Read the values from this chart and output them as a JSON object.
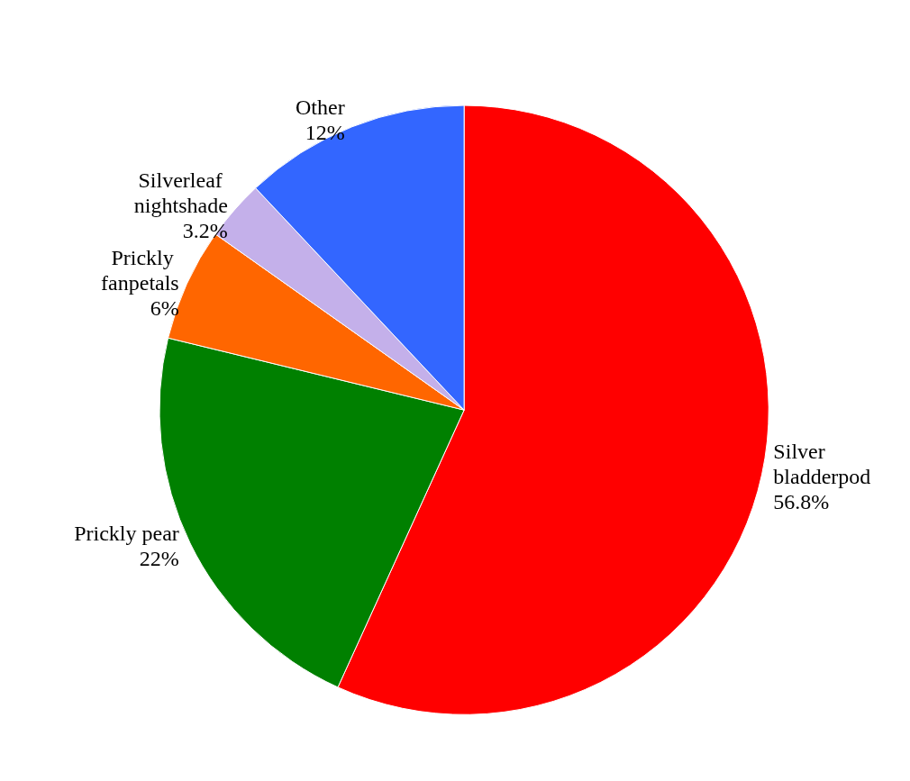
{
  "chart_data": {
    "type": "pie",
    "categories": [
      "Silver bladderpod",
      "Prickly pear",
      "Prickly fanpetals",
      "Silverleaf nightshade",
      "Other"
    ],
    "values": [
      56.8,
      22,
      6,
      3.2,
      12
    ],
    "colors": [
      "#ff0000",
      "#008000",
      "#ff6600",
      "#c4b0ea",
      "#3366ff"
    ],
    "value_labels": [
      "56.8%",
      "22%",
      "6%",
      "3.2%",
      "12%"
    ],
    "legend": false
  }
}
